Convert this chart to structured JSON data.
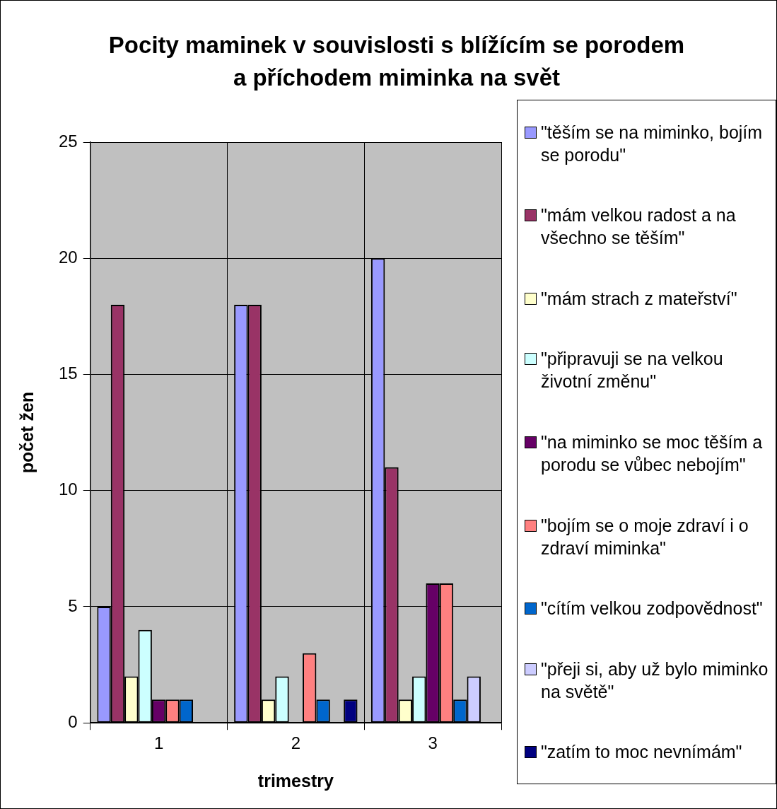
{
  "chart_data": {
    "type": "bar",
    "title": "Pocity maminek v souvislosti s blížícím se porodem a příchodem miminka na svět",
    "xlabel": "trimestry",
    "ylabel": "počet žen",
    "categories": [
      "1",
      "2",
      "3"
    ],
    "series": [
      {
        "name": "\"těším se na miminko, bojím se porodu\"",
        "color": "#9999ff",
        "values": [
          5,
          18,
          20
        ]
      },
      {
        "name": "\"mám velkou radost a na všechno se těším\"",
        "color": "#993366",
        "values": [
          18,
          18,
          11
        ]
      },
      {
        "name": "\"mám strach z mateřství\"",
        "color": "#ffffcc",
        "values": [
          2,
          1,
          1
        ]
      },
      {
        "name": "\"připravuji se na velkou životní změnu\"",
        "color": "#ccffff",
        "values": [
          4,
          2,
          2
        ]
      },
      {
        "name": "\"na miminko se moc těším a porodu se vůbec nebojím\"",
        "color": "#660066",
        "values": [
          1,
          0,
          6
        ]
      },
      {
        "name": "\"bojím se o moje zdraví i o zdraví miminka\"",
        "color": "#ff8080",
        "values": [
          1,
          3,
          6
        ]
      },
      {
        "name": "\"cítím velkou zodpovědnost\"",
        "color": "#0066cc",
        "values": [
          1,
          1,
          1
        ]
      },
      {
        "name": "\"přeji si, aby už bylo miminko na světě\"",
        "color": "#ccccff",
        "values": [
          0,
          0,
          2
        ]
      },
      {
        "name": "\"zatím to moc nevnímám\"",
        "color": "#000080",
        "values": [
          0,
          1,
          0
        ]
      }
    ],
    "ylim": [
      0,
      25
    ],
    "yticks": [
      0,
      5,
      10,
      15,
      20,
      25
    ],
    "grid": true,
    "legend": "right"
  }
}
